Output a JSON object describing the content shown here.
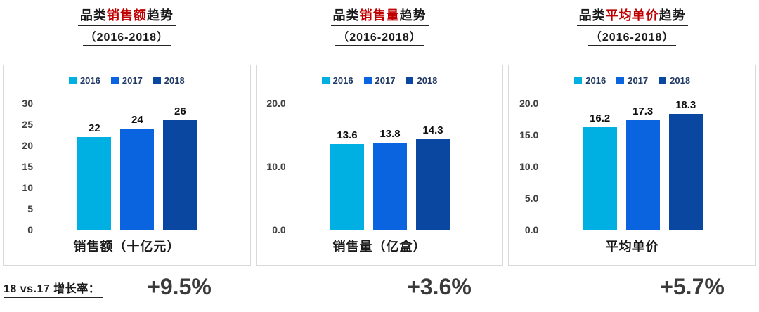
{
  "colors": {
    "series": [
      "#00B0E3",
      "#0A64DF",
      "#0A47A0"
    ],
    "title_highlight": "#C00000",
    "growth_text": "#3A3A3A"
  },
  "titles": [
    {
      "prefix": "品类",
      "highlight": "销售额",
      "suffix": "趋势",
      "line2": "（2016-2018）"
    },
    {
      "prefix": "品类",
      "highlight": "销售量",
      "suffix": "趋势",
      "line2": "（2016-2018）"
    },
    {
      "prefix": "品类",
      "highlight": "平均单价",
      "suffix": "趋势",
      "line2": "（2016-2018）"
    }
  ],
  "footer": {
    "label": "18 vs.17 增长率：",
    "growth_values": [
      "+9.5%",
      "+3.6%",
      "+5.7%"
    ]
  },
  "chart_data": [
    {
      "type": "bar",
      "title": "品类销售额趋势（2016-2018）",
      "categories": [
        "2016",
        "2017",
        "2018"
      ],
      "values": [
        22,
        24,
        26
      ],
      "value_labels": [
        "22",
        "24",
        "26"
      ],
      "xlabel": "销售额（十亿元）",
      "ylabel": "",
      "ylim": [
        0,
        30
      ],
      "yticks": [
        "0",
        "5",
        "10",
        "15",
        "20",
        "25",
        "30"
      ],
      "legend_position": "top",
      "grid": false,
      "growth_18_vs_17": "+9.5%"
    },
    {
      "type": "bar",
      "title": "品类销售量趋势（2016-2018）",
      "categories": [
        "2016",
        "2017",
        "2018"
      ],
      "values": [
        13.6,
        13.8,
        14.3
      ],
      "value_labels": [
        "13.6",
        "13.8",
        "14.3"
      ],
      "xlabel": "销售量（亿盒）",
      "ylabel": "",
      "ylim": [
        0,
        20
      ],
      "yticks": [
        "0.0",
        "10.0",
        "20.0"
      ],
      "legend_position": "top",
      "grid": false,
      "growth_18_vs_17": "+3.6%"
    },
    {
      "type": "bar",
      "title": "品类平均单价趋势（2016-2018）",
      "categories": [
        "2016",
        "2017",
        "2018"
      ],
      "values": [
        16.2,
        17.3,
        18.3
      ],
      "value_labels": [
        "16.2",
        "17.3",
        "18.3"
      ],
      "xlabel": "平均单价",
      "ylabel": "",
      "ylim": [
        0,
        20
      ],
      "yticks": [
        "0.0",
        "5.0",
        "10.0",
        "15.0",
        "20.0"
      ],
      "legend_position": "top",
      "grid": false,
      "growth_18_vs_17": "+5.7%"
    }
  ]
}
